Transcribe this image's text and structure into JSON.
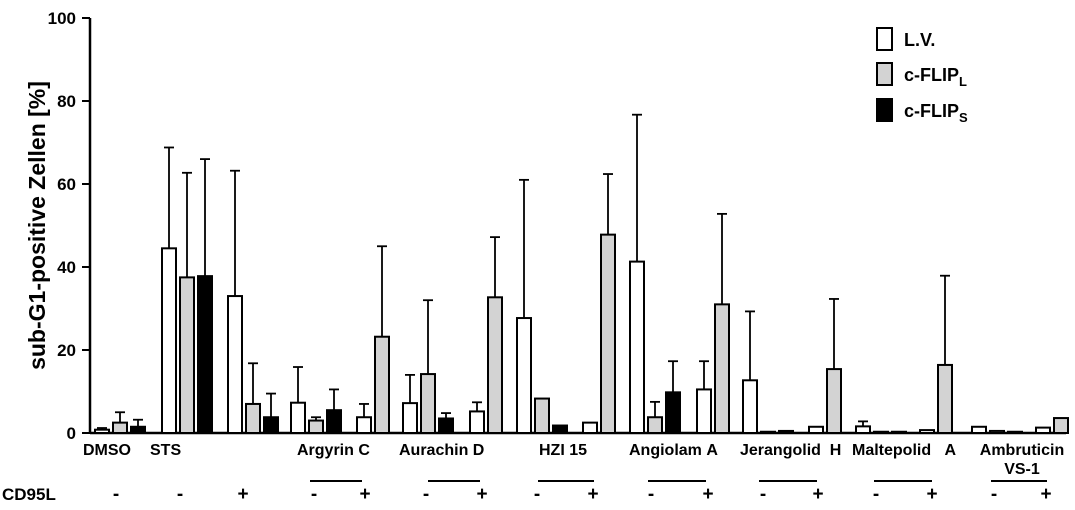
{
  "chart_data": {
    "type": "bar",
    "ylabel": "sub-G1-positive Zellen [%]",
    "ylim": [
      0,
      100
    ],
    "yticks": [
      "0",
      "20",
      "40",
      "60",
      "80",
      "100"
    ],
    "series": [
      {
        "name": "L.V.",
        "color": "#ffffff",
        "legend_main": "L.V.",
        "legend_sub": ""
      },
      {
        "name": "c-FLIPL",
        "color": "#d3d3d3",
        "legend_main": "c-FLIP",
        "legend_sub": "L"
      },
      {
        "name": "c-FLIPS",
        "color": "#000000",
        "legend_main": "c-FLIP",
        "legend_sub": "S"
      }
    ],
    "categories": [
      {
        "label": "DMSO",
        "cd95l": "-",
        "values": [
          0.8,
          2.5,
          1.5
        ],
        "errors": [
          0.4,
          2.5,
          1.7
        ]
      },
      {
        "label": "STS",
        "cd95l": "-",
        "values": [
          44.5,
          37.5,
          37.8
        ],
        "errors": [
          24.3,
          25.2,
          28.2
        ]
      },
      {
        "label": "",
        "cd95l": "+",
        "values": [
          33,
          7,
          3.8
        ],
        "errors": [
          30.2,
          9.8,
          5.7
        ]
      },
      {
        "label": "",
        "cd95l": "-",
        "values": [
          7.3,
          3,
          5.5
        ],
        "errors": [
          8.6,
          0.8,
          5
        ]
      },
      {
        "label": "",
        "cd95l": "+",
        "values": [
          3.8,
          23.2,
          null
        ],
        "errors": [
          3.2,
          21.8,
          null
        ]
      },
      {
        "label": "",
        "cd95l": "-",
        "values": [
          7.2,
          14.2,
          3.5
        ],
        "errors": [
          6.8,
          17.8,
          1.3
        ]
      },
      {
        "label": "",
        "cd95l": "+",
        "values": [
          5.2,
          32.7,
          null
        ],
        "errors": [
          2.2,
          14.5,
          null
        ]
      },
      {
        "label": "",
        "cd95l": "-",
        "values": [
          27.7,
          8.3,
          1.8
        ],
        "errors": [
          33.3,
          0,
          0
        ]
      },
      {
        "label": "",
        "cd95l": "+",
        "values": [
          2.5,
          47.8,
          null
        ],
        "errors": [
          0,
          14.6,
          null
        ]
      },
      {
        "label": "",
        "cd95l": "-",
        "values": [
          41.3,
          3.8,
          9.8
        ],
        "errors": [
          35.4,
          3.7,
          7.5
        ]
      },
      {
        "label": "",
        "cd95l": "+",
        "values": [
          10.5,
          31,
          null
        ],
        "errors": [
          6.8,
          21.8,
          null
        ]
      },
      {
        "label": "",
        "cd95l": "-",
        "values": [
          12.7,
          0.3,
          0.5
        ],
        "errors": [
          16.6,
          0,
          0
        ]
      },
      {
        "label": "",
        "cd95l": "+",
        "values": [
          1.5,
          15.4,
          null
        ],
        "errors": [
          0,
          16.9,
          null
        ]
      },
      {
        "label": "",
        "cd95l": "-",
        "values": [
          1.6,
          0.3,
          0.3
        ],
        "errors": [
          1.2,
          0,
          0
        ]
      },
      {
        "label": "",
        "cd95l": "+",
        "values": [
          0.7,
          16.4,
          null
        ],
        "errors": [
          0,
          21.5,
          null
        ]
      },
      {
        "label": "",
        "cd95l": "-",
        "values": [
          1.5,
          0.5,
          0.3
        ],
        "errors": [
          0,
          0,
          0
        ]
      },
      {
        "label": "",
        "cd95l": "+",
        "values": [
          1.3,
          3.6,
          null
        ],
        "errors": [
          0,
          0,
          null
        ]
      }
    ],
    "group_labels": [
      {
        "label": "Argyrin C"
      },
      {
        "label": "Aurachin D"
      },
      {
        "label": "HZI 15"
      },
      {
        "label": "Angiolam A"
      },
      {
        "label": "Jerangolid H"
      },
      {
        "label": "Maltepolid A"
      },
      {
        "label": "Ambruticin VS-1"
      }
    ],
    "treatment_row_label": "CD95L",
    "legend_position": "top-right",
    "grid": false
  }
}
